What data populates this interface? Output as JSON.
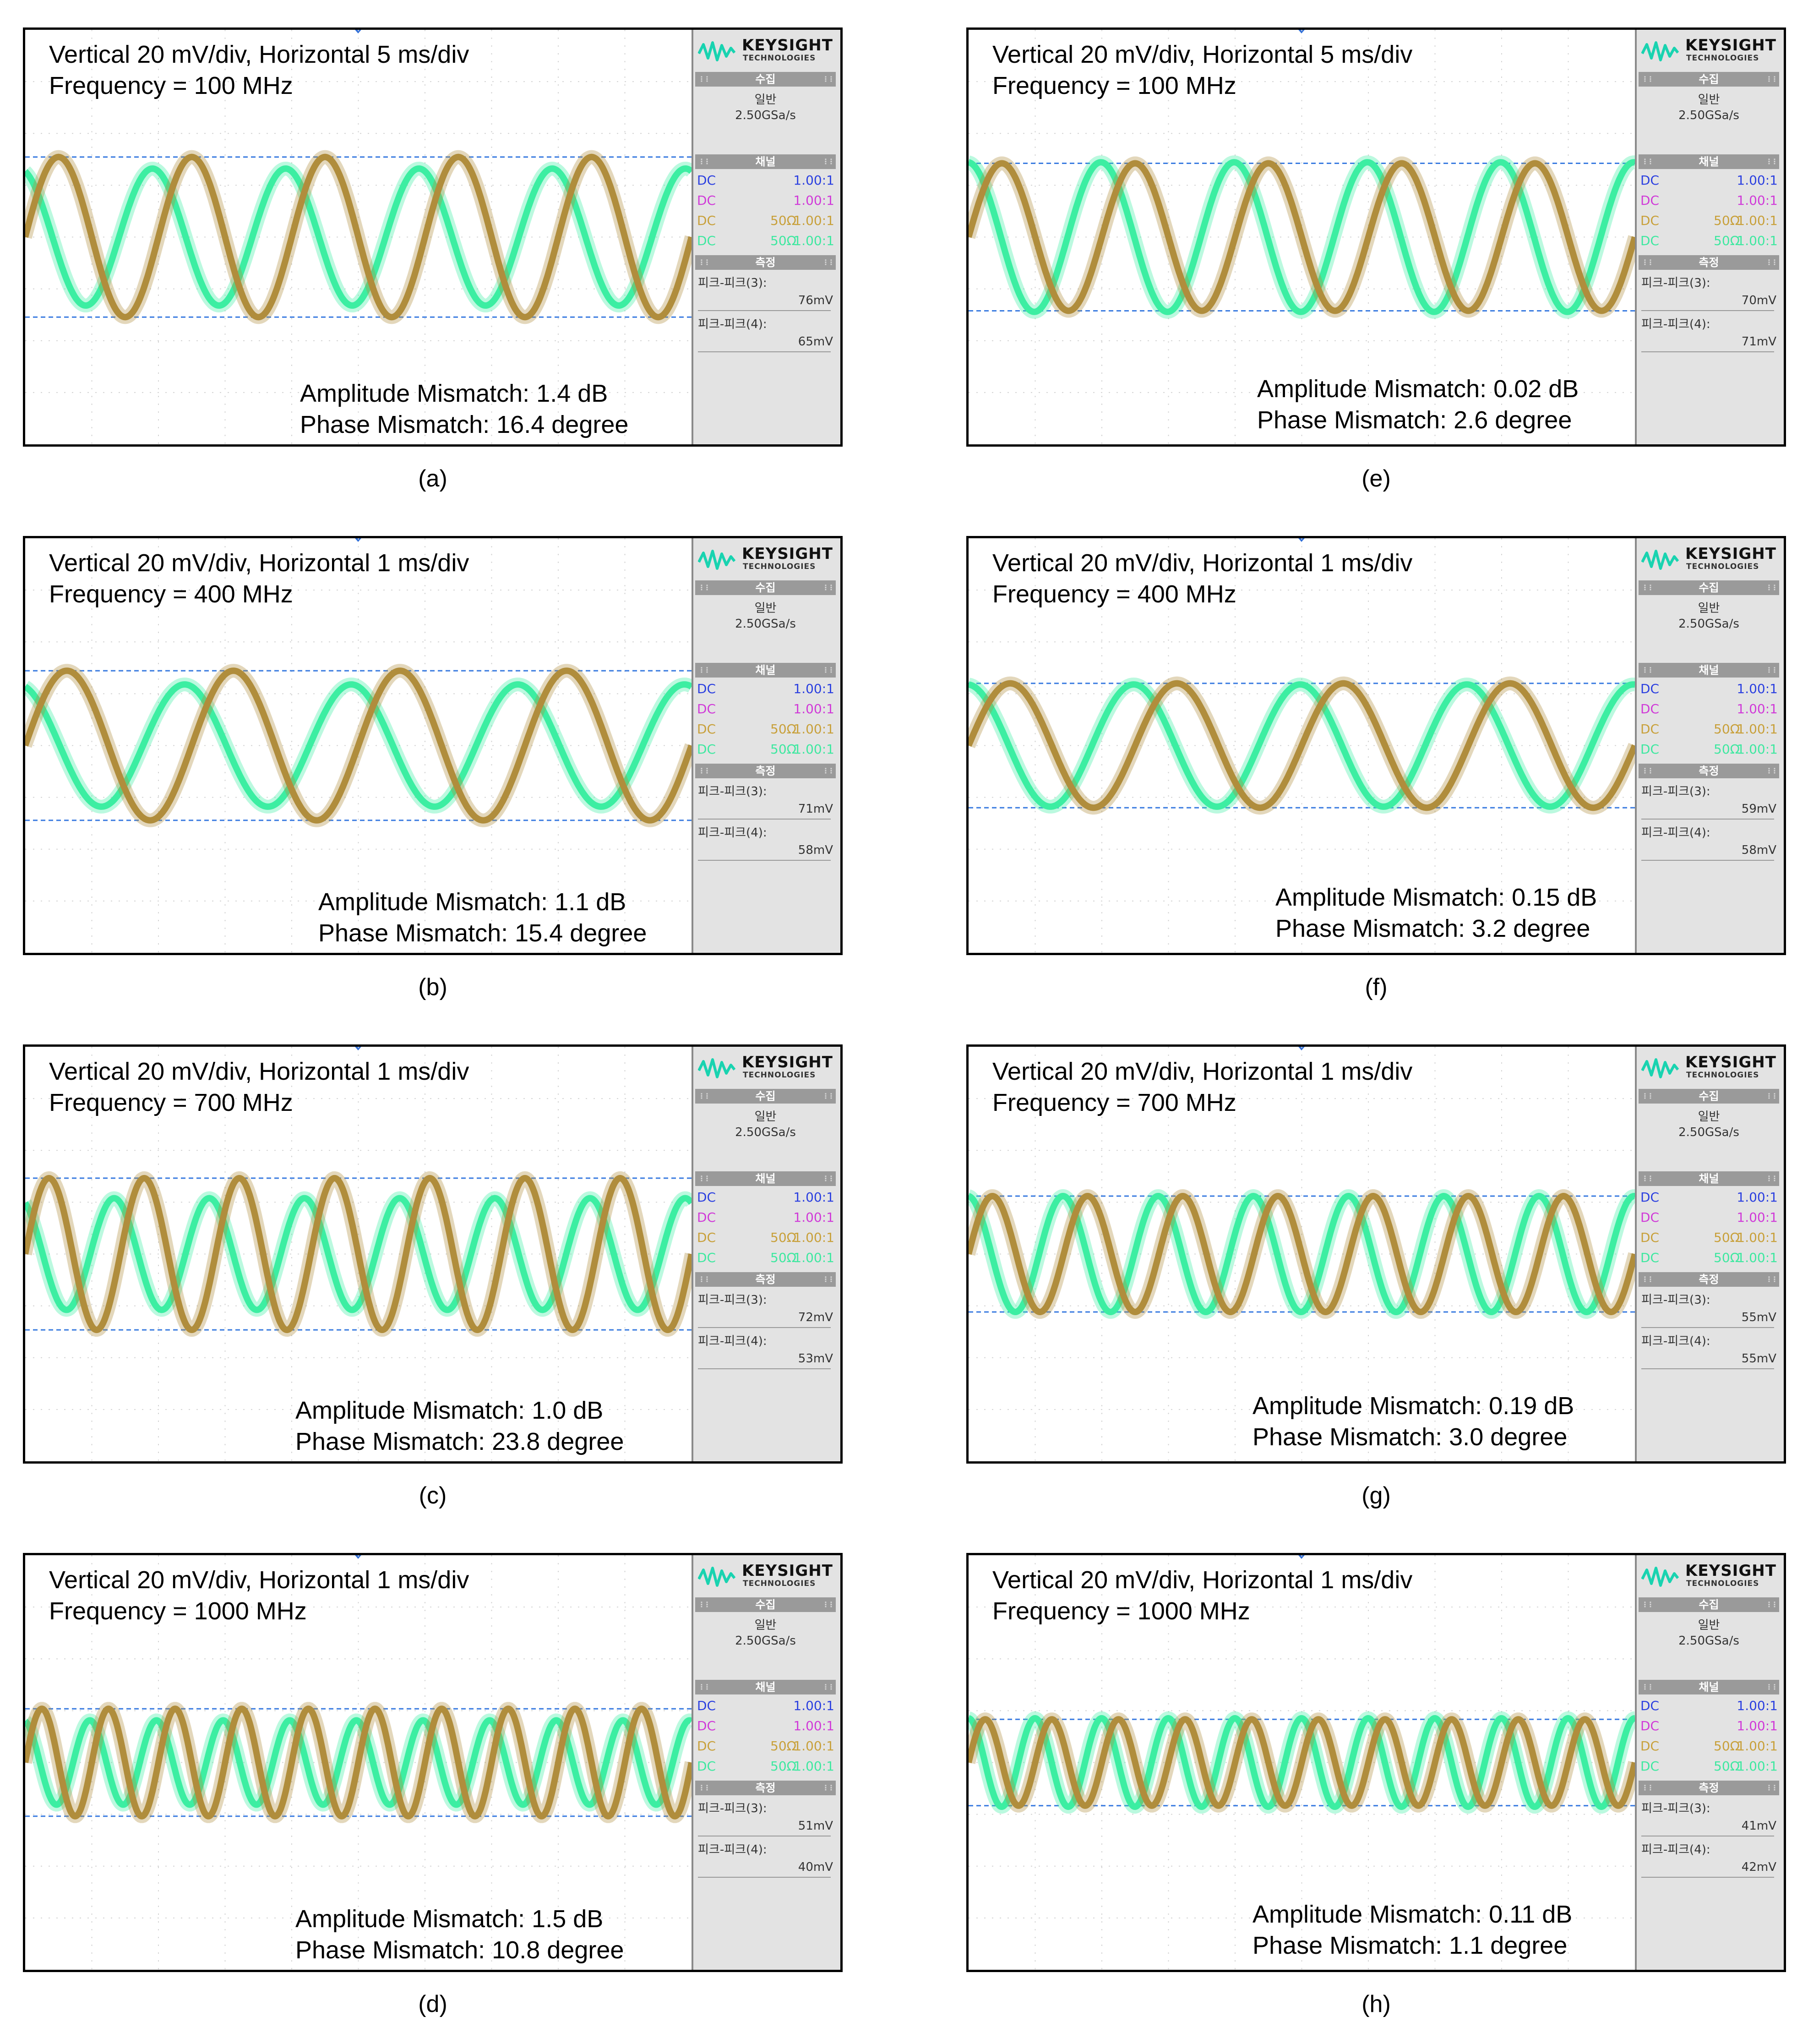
{
  "common": {
    "brand_name": "KEYSIGHT",
    "brand_sub": "TECHNOLOGIES",
    "acquire_header": "수집",
    "acquire_mode": "일반",
    "sample_rate": "2.50GSa/s",
    "channel_header": "채널",
    "measure_header": "측정",
    "channels": [
      {
        "coupling": "DC",
        "impedance": "",
        "probe": "1.00:1",
        "color": "#2b3fe0"
      },
      {
        "coupling": "DC",
        "impedance": "",
        "probe": "1.00:1",
        "color": "#d03ad8"
      },
      {
        "coupling": "DC",
        "impedance": "50Ω",
        "probe": "1.00:1",
        "color": "#c8a03a"
      },
      {
        "coupling": "DC",
        "impedance": "50Ω",
        "probe": "1.00:1",
        "color": "#3ee8a0"
      }
    ],
    "meas3_label": "피크-피크(3):",
    "meas4_label": "피크-피크(4):",
    "trace_colors": {
      "ch3": "#b08d3c",
      "ch4": "#3ceea2"
    },
    "marker_color": "#2f6ed8",
    "ref_line_color": "#3a7be0"
  },
  "panels": [
    {
      "id": "a",
      "caption": "(a)",
      "line1": "Vertical 20 mV/div, Horizontal 5 ms/div",
      "line2": "Frequency = 100 MHz",
      "amp": "Amplitude Mismatch: 1.4 dB",
      "phase": "Phase Mismatch: 16.4 degree",
      "m3": "76mV",
      "m4": "65mV",
      "cycles": 5.0
    },
    {
      "id": "b",
      "caption": "(b)",
      "line1": "Vertical 20 mV/div, Horizontal 1 ms/div",
      "line2": "Frequency = 400 MHz",
      "amp": "Amplitude Mismatch: 1.1 dB",
      "phase": "Phase Mismatch: 15.4 degree",
      "m3": "71mV",
      "m4": "58mV",
      "cycles": 4.0
    },
    {
      "id": "c",
      "caption": "(c)",
      "line1": "Vertical 20 mV/div, Horizontal 1 ms/div",
      "line2": "Frequency = 700 MHz",
      "amp": "Amplitude Mismatch: 1.0 dB",
      "phase": "Phase Mismatch: 23.8 degree",
      "m3": "72mV",
      "m4": "53mV",
      "cycles": 7.0
    },
    {
      "id": "d",
      "caption": "(d)",
      "line1": "Vertical 20 mV/div, Horizontal 1 ms/div",
      "line2": "Frequency = 1000 MHz",
      "amp": "Amplitude Mismatch: 1.5 dB",
      "phase": "Phase Mismatch: 10.8 degree",
      "m3": "51mV",
      "m4": "40mV",
      "cycles": 10.0
    },
    {
      "id": "e",
      "caption": "(e)",
      "line1": "Vertical 20 mV/div, Horizontal 5 ms/div",
      "line2": "Frequency = 100 MHz",
      "amp": "Amplitude Mismatch: 0.02 dB",
      "phase": "Phase Mismatch: 2.6 degree",
      "m3": "70mV",
      "m4": "71mV",
      "cycles": 5.0
    },
    {
      "id": "f",
      "caption": "(f)",
      "line1": "Vertical 20 mV/div, Horizontal 1 ms/div",
      "line2": "Frequency = 400 MHz",
      "amp": "Amplitude Mismatch: 0.15 dB",
      "phase": "Phase Mismatch: 3.2 degree",
      "m3": "59mV",
      "m4": "58mV",
      "cycles": 4.0
    },
    {
      "id": "g",
      "caption": "(g)",
      "line1": "Vertical 20 mV/div, Horizontal 1 ms/div",
      "line2": "Frequency = 700 MHz",
      "amp": "Amplitude Mismatch: 0.19 dB",
      "phase": "Phase Mismatch: 3.0 degree",
      "m3": "55mV",
      "m4": "55mV",
      "cycles": 7.0
    },
    {
      "id": "h",
      "caption": "(h)",
      "line1": "Vertical 20 mV/div, Horizontal 1 ms/div",
      "line2": "Frequency = 1000 MHz",
      "amp": "Amplitude Mismatch: 0.11 dB",
      "phase": "Phase Mismatch: 1.1 degree",
      "m3": "41mV",
      "m4": "42mV",
      "cycles": 10.0
    }
  ]
}
